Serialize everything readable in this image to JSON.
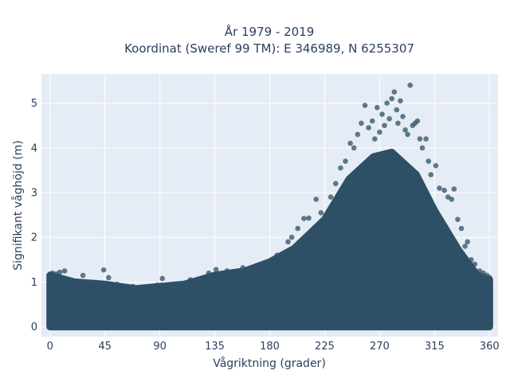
{
  "chart_data": {
    "type": "scatter",
    "title_line1": "År 1979 - 2019",
    "title_line2": "Koordinat (Sweref 99 TM): E 346989, N 6255307",
    "xlabel": "Vågriktning (grader)",
    "ylabel": "Signifikant våghöjd (m)",
    "xlim": [
      -7,
      367
    ],
    "ylim": [
      -0.22,
      5.65
    ],
    "x_ticks": [
      0,
      45,
      90,
      135,
      180,
      225,
      270,
      315,
      360
    ],
    "y_ticks": [
      0,
      1,
      2,
      3,
      4,
      5
    ],
    "grid": true,
    "marker_color": "#2e5066",
    "background_color": "#e5ecf6",
    "envelope": {
      "x": [
        0,
        20,
        45,
        70,
        90,
        110,
        135,
        160,
        180,
        200,
        225,
        245,
        265,
        280,
        300,
        315,
        335,
        350,
        360
      ],
      "y_upper": [
        1.15,
        1.0,
        0.95,
        0.85,
        0.9,
        0.95,
        1.15,
        1.25,
        1.45,
        1.75,
        2.4,
        3.3,
        3.8,
        3.9,
        3.4,
        2.6,
        1.7,
        1.15,
        1.05
      ],
      "y_lower": [
        0.0,
        0.0,
        0.0,
        0.0,
        0.0,
        0.0,
        0.0,
        0.0,
        0.0,
        0.0,
        0.0,
        0.0,
        0.0,
        0.0,
        0.0,
        0.0,
        0.0,
        0.0,
        0.0
      ]
    },
    "outliers": [
      {
        "x": 0,
        "y": 1.18
      },
      {
        "x": 2,
        "y": 1.2
      },
      {
        "x": 5,
        "y": 1.18
      },
      {
        "x": 8,
        "y": 1.22
      },
      {
        "x": 12,
        "y": 1.25
      },
      {
        "x": 20,
        "y": 1.0
      },
      {
        "x": 27,
        "y": 1.15
      },
      {
        "x": 33,
        "y": 0.95
      },
      {
        "x": 40,
        "y": 0.98
      },
      {
        "x": 44,
        "y": 1.27
      },
      {
        "x": 48,
        "y": 1.1
      },
      {
        "x": 55,
        "y": 0.95
      },
      {
        "x": 68,
        "y": 0.9
      },
      {
        "x": 88,
        "y": 0.93
      },
      {
        "x": 92,
        "y": 1.08
      },
      {
        "x": 108,
        "y": 0.97
      },
      {
        "x": 115,
        "y": 1.05
      },
      {
        "x": 130,
        "y": 1.2
      },
      {
        "x": 136,
        "y": 1.28
      },
      {
        "x": 145,
        "y": 1.25
      },
      {
        "x": 158,
        "y": 1.32
      },
      {
        "x": 168,
        "y": 1.35
      },
      {
        "x": 180,
        "y": 1.45
      },
      {
        "x": 186,
        "y": 1.6
      },
      {
        "x": 195,
        "y": 1.9
      },
      {
        "x": 198,
        "y": 2.0
      },
      {
        "x": 203,
        "y": 2.2
      },
      {
        "x": 208,
        "y": 2.42
      },
      {
        "x": 212,
        "y": 2.43
      },
      {
        "x": 218,
        "y": 2.85
      },
      {
        "x": 222,
        "y": 2.55
      },
      {
        "x": 226,
        "y": 2.5
      },
      {
        "x": 230,
        "y": 2.9
      },
      {
        "x": 234,
        "y": 3.2
      },
      {
        "x": 238,
        "y": 3.55
      },
      {
        "x": 242,
        "y": 3.7
      },
      {
        "x": 246,
        "y": 4.1
      },
      {
        "x": 249,
        "y": 4.0
      },
      {
        "x": 252,
        "y": 4.3
      },
      {
        "x": 255,
        "y": 4.55
      },
      {
        "x": 258,
        "y": 4.95
      },
      {
        "x": 261,
        "y": 4.45
      },
      {
        "x": 264,
        "y": 4.6
      },
      {
        "x": 266,
        "y": 4.2
      },
      {
        "x": 268,
        "y": 4.9
      },
      {
        "x": 270,
        "y": 4.35
      },
      {
        "x": 272,
        "y": 4.75
      },
      {
        "x": 274,
        "y": 4.5
      },
      {
        "x": 276,
        "y": 5.0
      },
      {
        "x": 278,
        "y": 4.65
      },
      {
        "x": 280,
        "y": 5.1
      },
      {
        "x": 282,
        "y": 5.25
      },
      {
        "x": 284,
        "y": 4.85
      },
      {
        "x": 285,
        "y": 4.55
      },
      {
        "x": 287,
        "y": 5.05
      },
      {
        "x": 289,
        "y": 4.7
      },
      {
        "x": 291,
        "y": 4.4
      },
      {
        "x": 293,
        "y": 4.3
      },
      {
        "x": 295,
        "y": 5.4
      },
      {
        "x": 297,
        "y": 4.5
      },
      {
        "x": 299,
        "y": 4.55
      },
      {
        "x": 301,
        "y": 4.6
      },
      {
        "x": 303,
        "y": 4.2
      },
      {
        "x": 305,
        "y": 4.0
      },
      {
        "x": 308,
        "y": 4.2
      },
      {
        "x": 310,
        "y": 3.7
      },
      {
        "x": 312,
        "y": 3.4
      },
      {
        "x": 316,
        "y": 3.6
      },
      {
        "x": 319,
        "y": 3.1
      },
      {
        "x": 323,
        "y": 3.05
      },
      {
        "x": 326,
        "y": 2.9
      },
      {
        "x": 329,
        "y": 2.85
      },
      {
        "x": 331,
        "y": 3.08
      },
      {
        "x": 334,
        "y": 2.4
      },
      {
        "x": 337,
        "y": 2.2
      },
      {
        "x": 340,
        "y": 1.8
      },
      {
        "x": 342,
        "y": 1.9
      },
      {
        "x": 345,
        "y": 1.5
      },
      {
        "x": 348,
        "y": 1.4
      },
      {
        "x": 352,
        "y": 1.25
      },
      {
        "x": 355,
        "y": 1.2
      },
      {
        "x": 358,
        "y": 1.15
      },
      {
        "x": 360,
        "y": 1.1
      }
    ]
  }
}
